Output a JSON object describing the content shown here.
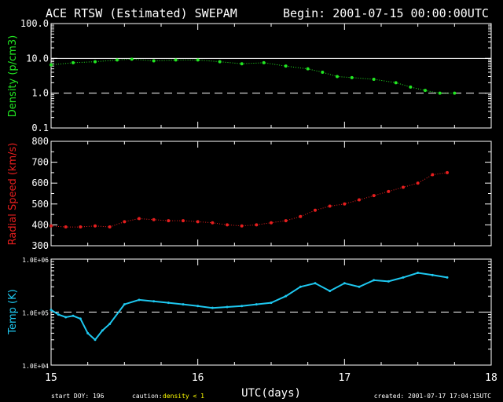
{
  "header": {
    "title": "ACE RTSW (Estimated) SWEPAM",
    "begin": "Begin: 2001-07-15 00:00:00UTC"
  },
  "footer": {
    "start_doy": "start DOY: 196",
    "caution_label": "caution:",
    "caution_value": "density < 1",
    "created": "created: 2001-07-17 17:04:15UTC"
  },
  "colors": {
    "background": "#000000",
    "axes": "#ffffff",
    "density": "#22e622",
    "speed": "#e61e1e",
    "temp": "#1ec8f0",
    "caution": "#ffff00"
  },
  "chart_data": {
    "x_axis": {
      "label": "UTC(days)",
      "range": [
        15,
        18
      ],
      "ticks": [
        "15",
        "16",
        "17",
        "18"
      ]
    },
    "panels": [
      {
        "name": "density",
        "type": "scatter",
        "scale": "log",
        "ylabel": "Density (p/cm3)",
        "ylim": [
          0.1,
          100
        ],
        "ytick_labels": [
          "100.0",
          "10.0",
          "1.0",
          "0.1"
        ],
        "yticks": [
          100,
          10,
          1,
          0.1
        ],
        "reference_lines": [
          {
            "y": 10,
            "style": "solid"
          },
          {
            "y": 1,
            "style": "dashed"
          }
        ],
        "x": [
          15.0,
          15.15,
          15.3,
          15.45,
          15.55,
          15.7,
          15.85,
          16.0,
          16.15,
          16.3,
          16.45,
          16.6,
          16.75,
          16.85,
          16.95,
          17.05,
          17.2,
          17.35,
          17.45,
          17.55,
          17.65,
          17.75
        ],
        "y": [
          6.5,
          7.5,
          8.0,
          9.0,
          9.5,
          8.5,
          9.0,
          9.0,
          8.0,
          7.0,
          7.5,
          6.0,
          5.0,
          4.0,
          3.0,
          2.8,
          2.5,
          2.0,
          1.5,
          1.2,
          1.0,
          1.0
        ]
      },
      {
        "name": "speed",
        "type": "scatter",
        "scale": "linear",
        "ylabel": "Radial Speed (km/s)",
        "ylim": [
          300,
          800
        ],
        "ytick_labels": [
          "800",
          "700",
          "600",
          "500",
          "400",
          "300"
        ],
        "yticks": [
          800,
          700,
          600,
          500,
          400,
          300
        ],
        "x": [
          15.0,
          15.1,
          15.2,
          15.3,
          15.4,
          15.5,
          15.6,
          15.7,
          15.8,
          15.9,
          16.0,
          16.1,
          16.2,
          16.3,
          16.4,
          16.5,
          16.6,
          16.7,
          16.8,
          16.9,
          17.0,
          17.1,
          17.2,
          17.3,
          17.4,
          17.5,
          17.6,
          17.7
        ],
        "y": [
          395,
          390,
          390,
          395,
          390,
          415,
          430,
          425,
          420,
          420,
          415,
          410,
          400,
          395,
          400,
          410,
          420,
          440,
          470,
          490,
          500,
          520,
          540,
          560,
          580,
          600,
          640,
          650
        ]
      },
      {
        "name": "temp",
        "type": "line",
        "scale": "log",
        "ylabel": "Temp (K)",
        "ylim": [
          10000,
          1000000
        ],
        "ytick_labels": [
          "1.0E+06",
          "1.0E+05",
          "1.0E+04"
        ],
        "yticks": [
          1000000,
          100000,
          10000
        ],
        "reference_lines": [
          {
            "y": 100000,
            "style": "dashed"
          }
        ],
        "x": [
          15.0,
          15.05,
          15.1,
          15.15,
          15.2,
          15.25,
          15.3,
          15.35,
          15.4,
          15.5,
          15.6,
          15.7,
          15.8,
          15.9,
          16.0,
          16.1,
          16.2,
          16.3,
          16.4,
          16.5,
          16.6,
          16.7,
          16.8,
          16.9,
          17.0,
          17.1,
          17.2,
          17.3,
          17.4,
          17.5,
          17.6,
          17.7
        ],
        "y": [
          110000,
          90000,
          80000,
          85000,
          75000,
          40000,
          30000,
          45000,
          60000,
          140000,
          170000,
          160000,
          150000,
          140000,
          130000,
          120000,
          125000,
          130000,
          140000,
          150000,
          200000,
          300000,
          350000,
          250000,
          350000,
          300000,
          400000,
          380000,
          450000,
          550000,
          500000,
          450000
        ]
      }
    ]
  }
}
